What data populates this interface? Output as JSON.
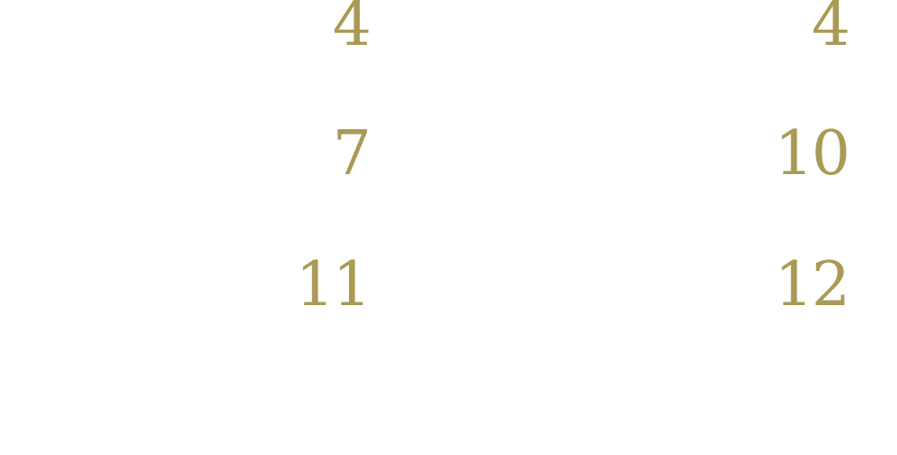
{
  "accent_color": "#A99A55",
  "numbers": {
    "left": [
      "4",
      "7",
      "11"
    ],
    "right": [
      "4",
      "10",
      "12"
    ]
  }
}
